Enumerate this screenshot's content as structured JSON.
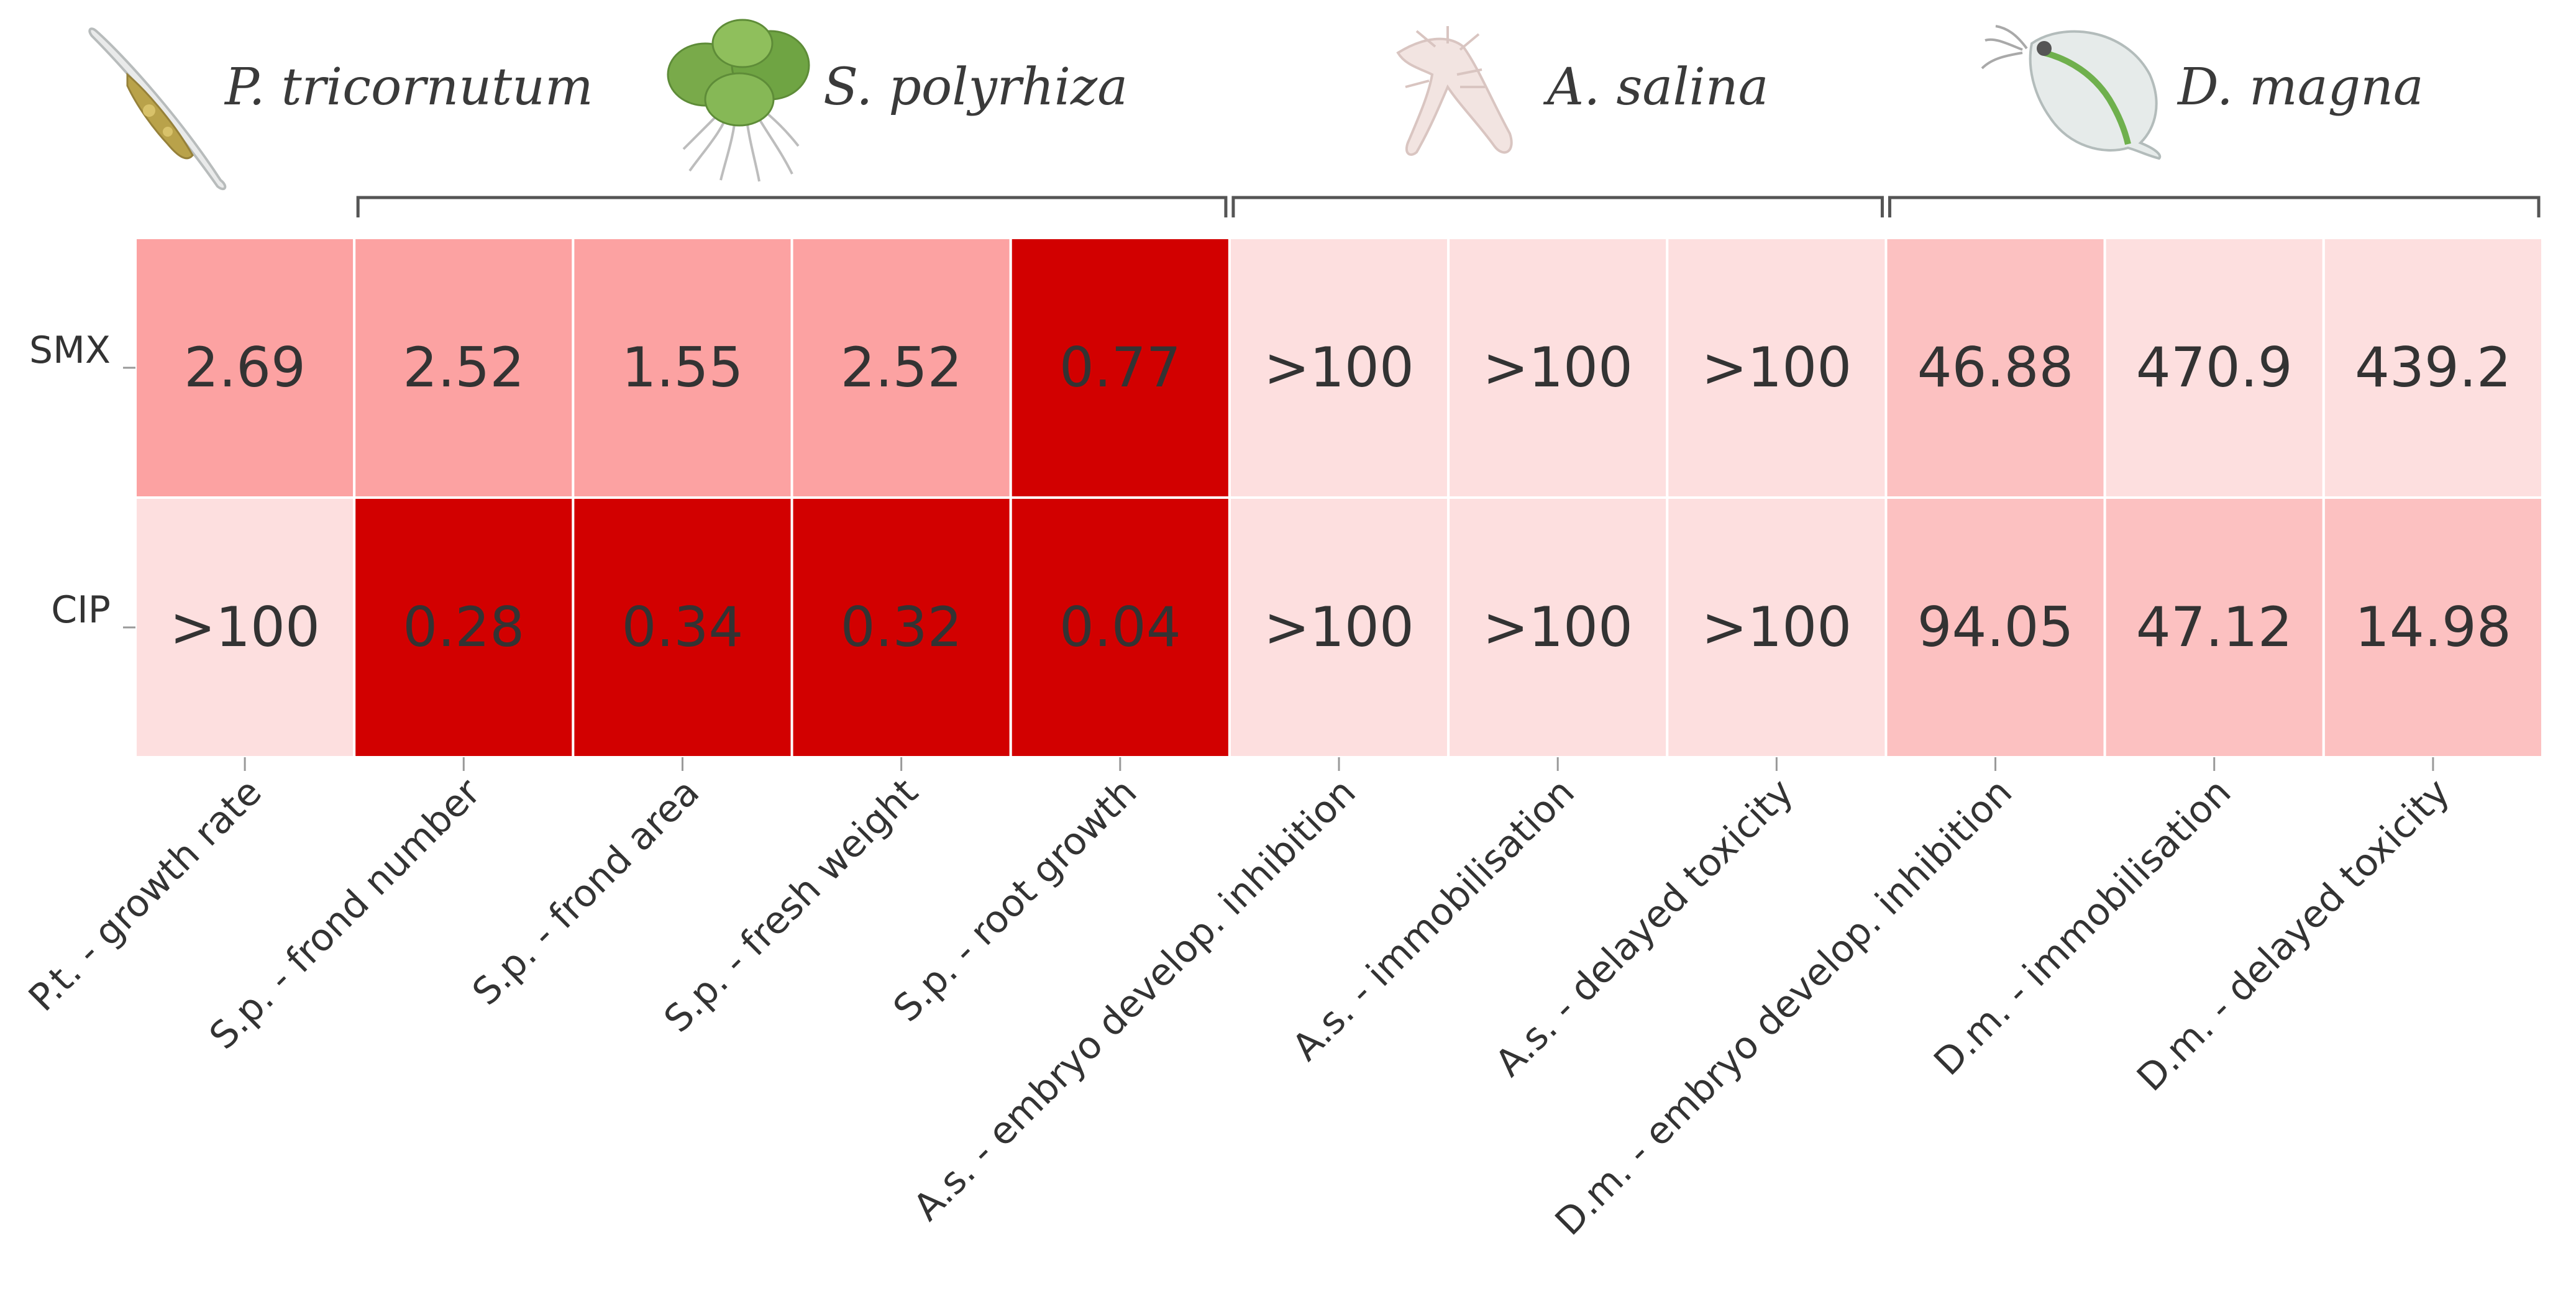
{
  "chart_data": {
    "type": "heatmap",
    "rows": [
      "SMX",
      "CIP"
    ],
    "columns": [
      "P.t. - growth rate",
      "S.p. - frond number",
      "S.p. - frond area",
      "S.p. - fresh weight",
      "S.p. - root growth",
      "A.s. - embryo develop. inhibition",
      "A.s. - immobilisation",
      "A.s. - delayed toxicity",
      "D.m. - embryo develop. inhibition",
      "D.m. - immobilisation",
      "D.m. - delayed toxicity"
    ],
    "values": [
      [
        "2.69",
        "2.52",
        "1.55",
        "2.52",
        "0.77",
        ">100",
        ">100",
        ">100",
        "46.88",
        "470.9",
        "439.2"
      ],
      [
        ">100",
        "0.28",
        "0.34",
        "0.32",
        "0.04",
        ">100",
        ">100",
        ">100",
        "94.05",
        "47.12",
        "14.98"
      ]
    ],
    "color_levels": [
      [
        2,
        2,
        2,
        2,
        4,
        0,
        0,
        0,
        1,
        0,
        0
      ],
      [
        0,
        4,
        4,
        4,
        4,
        0,
        0,
        0,
        1,
        1,
        1
      ]
    ],
    "colors": [
      "#fddfdf",
      "#fcc1c1",
      "#fca2a2",
      "#fb8585",
      "#d20000"
    ],
    "species": [
      {
        "name": "P. tricornutum",
        "icon": "diatom-icon"
      },
      {
        "name": "S. polyrhiza",
        "icon": "duckweed-icon"
      },
      {
        "name": "A. salina",
        "icon": "brine-shrimp-icon"
      },
      {
        "name": "D. magna",
        "icon": "daphnia-icon"
      }
    ],
    "groups": [
      {
        "name": "S. polyrhiza",
        "start": 1,
        "end": 4
      },
      {
        "name": "A. salina",
        "start": 5,
        "end": 7
      },
      {
        "name": "D. magna",
        "start": 8,
        "end": 10
      }
    ]
  }
}
